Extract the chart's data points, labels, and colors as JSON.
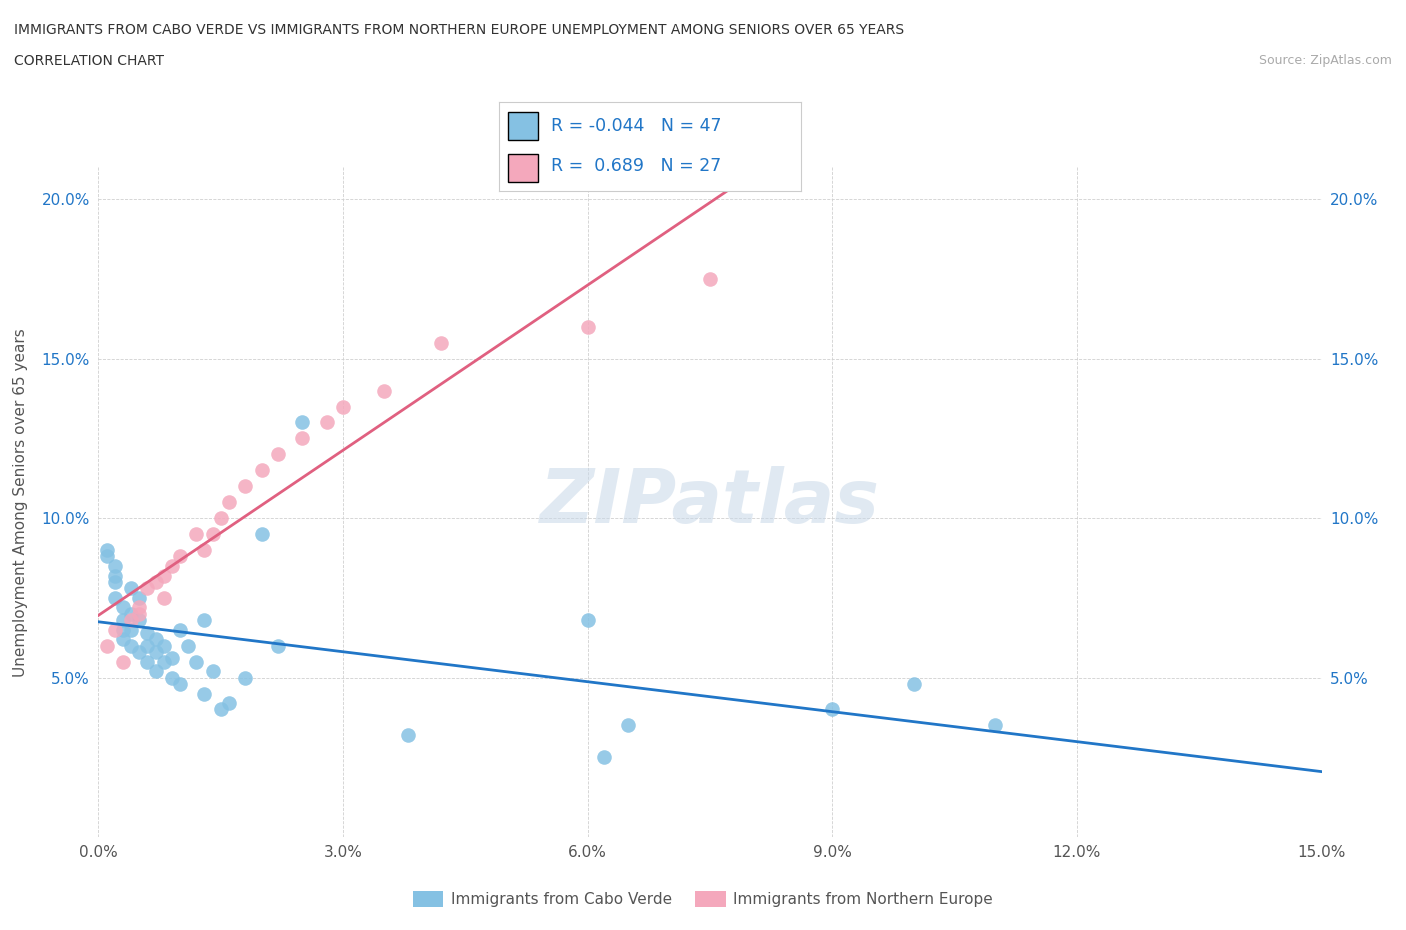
{
  "title_line1": "IMMIGRANTS FROM CABO VERDE VS IMMIGRANTS FROM NORTHERN EUROPE UNEMPLOYMENT AMONG SENIORS OVER 65 YEARS",
  "title_line2": "CORRELATION CHART",
  "source": "Source: ZipAtlas.com",
  "ylabel": "Unemployment Among Seniors over 65 years",
  "xlim": [
    0.0,
    0.15
  ],
  "ylim": [
    0.0,
    0.21
  ],
  "xticks": [
    0.0,
    0.03,
    0.06,
    0.09,
    0.12,
    0.15
  ],
  "yticks": [
    0.05,
    0.1,
    0.15,
    0.2
  ],
  "ytick_labels": [
    "5.0%",
    "10.0%",
    "15.0%",
    "20.0%"
  ],
  "xtick_labels": [
    "0.0%",
    "3.0%",
    "6.0%",
    "9.0%",
    "12.0%",
    "15.0%"
  ],
  "color_blue": "#85c1e3",
  "color_pink": "#f4a8bc",
  "line_blue": "#2176c7",
  "line_pink": "#e06080",
  "R_blue": -0.044,
  "N_blue": 47,
  "R_pink": 0.689,
  "N_pink": 27,
  "legend_label_blue": "Immigrants from Cabo Verde",
  "legend_label_pink": "Immigrants from Northern Europe",
  "watermark": "ZIPatlas",
  "cabo_verde_x": [
    0.001,
    0.001,
    0.002,
    0.002,
    0.002,
    0.002,
    0.003,
    0.003,
    0.003,
    0.003,
    0.004,
    0.004,
    0.004,
    0.004,
    0.005,
    0.005,
    0.005,
    0.006,
    0.006,
    0.006,
    0.007,
    0.007,
    0.007,
    0.008,
    0.008,
    0.009,
    0.009,
    0.01,
    0.01,
    0.011,
    0.012,
    0.013,
    0.013,
    0.014,
    0.015,
    0.016,
    0.018,
    0.02,
    0.022,
    0.025,
    0.06,
    0.065,
    0.09,
    0.1,
    0.11,
    0.062,
    0.038
  ],
  "cabo_verde_y": [
    0.088,
    0.09,
    0.075,
    0.08,
    0.085,
    0.082,
    0.068,
    0.072,
    0.065,
    0.062,
    0.078,
    0.07,
    0.065,
    0.06,
    0.075,
    0.068,
    0.058,
    0.064,
    0.06,
    0.055,
    0.062,
    0.058,
    0.052,
    0.06,
    0.055,
    0.056,
    0.05,
    0.065,
    0.048,
    0.06,
    0.055,
    0.068,
    0.045,
    0.052,
    0.04,
    0.042,
    0.05,
    0.095,
    0.06,
    0.13,
    0.068,
    0.035,
    0.04,
    0.048,
    0.035,
    0.025,
    0.032
  ],
  "northern_europe_x": [
    0.001,
    0.002,
    0.003,
    0.004,
    0.005,
    0.005,
    0.006,
    0.007,
    0.008,
    0.008,
    0.009,
    0.01,
    0.012,
    0.013,
    0.014,
    0.015,
    0.016,
    0.018,
    0.02,
    0.022,
    0.025,
    0.028,
    0.03,
    0.035,
    0.042,
    0.06,
    0.075
  ],
  "northern_europe_y": [
    0.06,
    0.065,
    0.055,
    0.068,
    0.07,
    0.072,
    0.078,
    0.08,
    0.075,
    0.082,
    0.085,
    0.088,
    0.095,
    0.09,
    0.095,
    0.1,
    0.105,
    0.11,
    0.115,
    0.12,
    0.125,
    0.13,
    0.135,
    0.14,
    0.155,
    0.16,
    0.175
  ]
}
